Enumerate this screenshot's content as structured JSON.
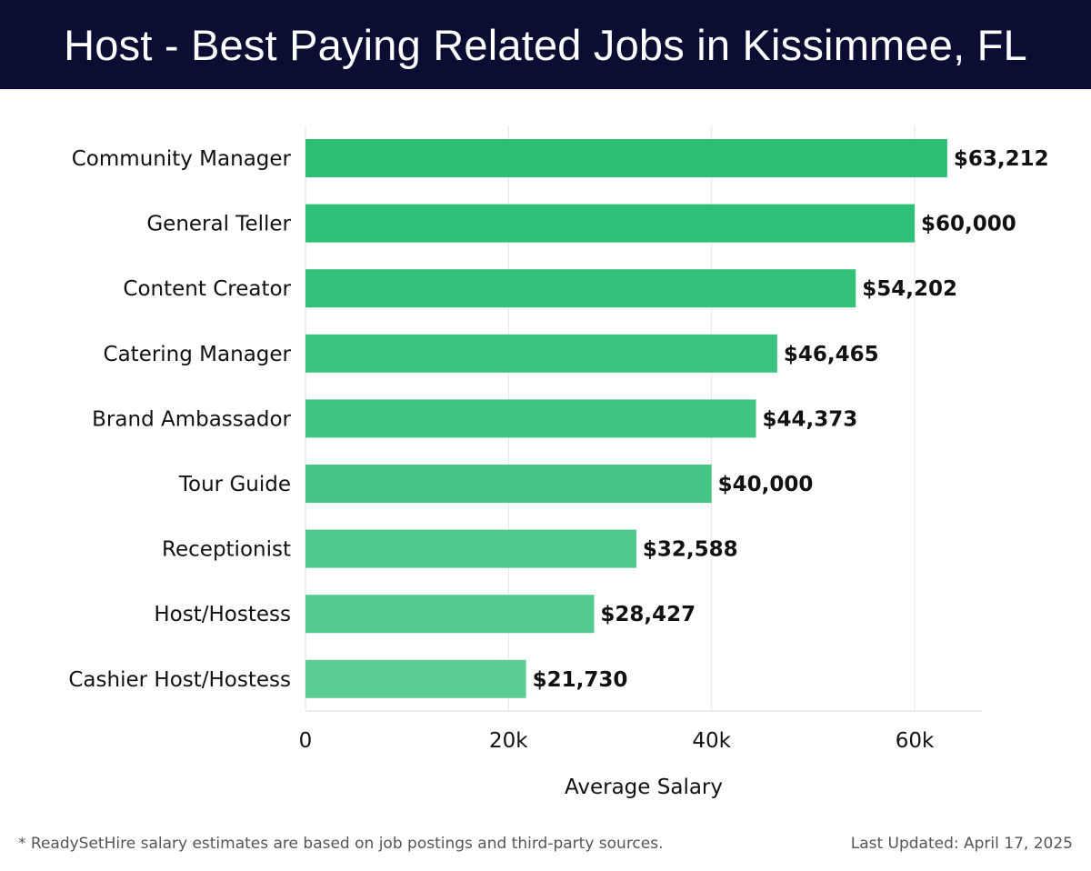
{
  "header": {
    "title": "Host - Best Paying Related Jobs in Kissimmee, FL"
  },
  "chart_data": {
    "type": "bar",
    "orientation": "horizontal",
    "title": "Host - Best Paying Related Jobs in Kissimmee, FL",
    "xlabel": "Average Salary",
    "ylabel": "",
    "xlim": [
      0,
      66500
    ],
    "x_ticks": [
      0,
      20000,
      40000,
      60000
    ],
    "x_tick_labels": [
      "0",
      "20k",
      "40k",
      "60k"
    ],
    "grid": true,
    "categories": [
      "Community Manager",
      "General Teller",
      "Content Creator",
      "Catering Manager",
      "Brand Ambassador",
      "Tour Guide",
      "Receptionist",
      "Host/Hostess",
      "Cashier Host/Hostess"
    ],
    "values": [
      63212,
      60000,
      54202,
      46465,
      44373,
      40000,
      32588,
      28427,
      21730
    ],
    "value_labels": [
      "$63,212",
      "$60,000",
      "$54,202",
      "$46,465",
      "$44,373",
      "$40,000",
      "$32,588",
      "$28,427",
      "$21,730"
    ],
    "bar_colors": [
      "#2bbf74",
      "#2ec076",
      "#33c17a",
      "#3bc37f",
      "#40c582",
      "#46c686",
      "#4ec98c",
      "#53ca8f",
      "#5ccd95"
    ]
  },
  "footer": {
    "note": "* ReadySetHire salary estimates are based on job postings and third-party sources.",
    "updated": "Last Updated: April 17, 2025"
  }
}
